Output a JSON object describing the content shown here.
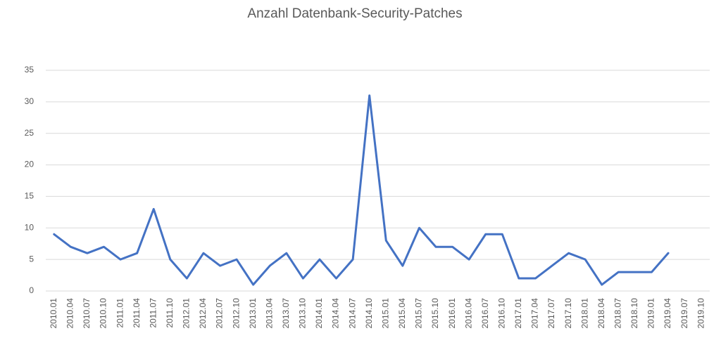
{
  "chart_data": {
    "type": "line",
    "title": "Anzahl Datenbank-Security-Patches",
    "categories": [
      "2010.01",
      "2010.04",
      "2010.07",
      "2010.10",
      "2011.01",
      "2011.04",
      "2011.07",
      "2011.10",
      "2012.01",
      "2012.04",
      "2012.07",
      "2012.10",
      "2013.01",
      "2013.04",
      "2013.07",
      "2013.10",
      "2014.01",
      "2014.04",
      "2014.07",
      "2014.10",
      "2015.01",
      "2015.04",
      "2015.07",
      "2015.10",
      "2016.01",
      "2016.04",
      "2016.07",
      "2016.10",
      "2017.01",
      "2017.04",
      "2017.07",
      "2017.10",
      "2018.01",
      "2018.04",
      "2018.07",
      "2018.10",
      "2019.01",
      "2019.04",
      "2019.07",
      "2019.10"
    ],
    "values": [
      9,
      7,
      6,
      7,
      5,
      6,
      13,
      5,
      2,
      6,
      4,
      5,
      1,
      4,
      6,
      2,
      5,
      2,
      5,
      31,
      8,
      4,
      10,
      7,
      7,
      5,
      9,
      9,
      2,
      2,
      4,
      6,
      5,
      1,
      3,
      3,
      3,
      6,
      null,
      null
    ],
    "color": "#4472c4",
    "ylim": [
      0,
      35
    ],
    "yticks": [
      0,
      5,
      10,
      15,
      20,
      25,
      30,
      35
    ],
    "grid": true
  }
}
